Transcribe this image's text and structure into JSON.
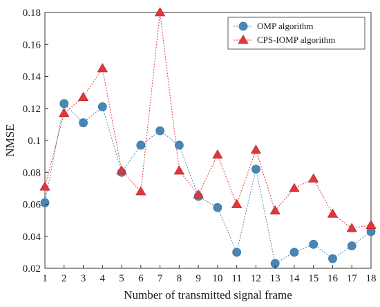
{
  "chart_data": {
    "type": "line",
    "xlabel": "Number of transmitted signal frame",
    "ylabel": "NMSE",
    "xlim": [
      1,
      18
    ],
    "ylim": [
      0.02,
      0.18
    ],
    "x": [
      1,
      2,
      3,
      4,
      5,
      6,
      7,
      8,
      9,
      10,
      11,
      12,
      13,
      14,
      15,
      16,
      17,
      18
    ],
    "x_ticks": [
      "1",
      "2",
      "3",
      "4",
      "5",
      "6",
      "7",
      "8",
      "9",
      "10",
      "11",
      "12",
      "13",
      "14",
      "15",
      "16",
      "17",
      "18"
    ],
    "y_ticks": [
      0.02,
      0.04,
      0.06,
      0.08,
      0.1,
      0.12,
      0.14,
      0.16,
      0.18
    ],
    "y_tick_labels": [
      "0.02",
      "0.04",
      "0.06",
      "0.08",
      "0.1",
      "0.12",
      "0.14",
      "0.16",
      "0.18"
    ],
    "grid": false,
    "legend_position": "top-right",
    "series": [
      {
        "name": "OMP algorithm",
        "marker": "circle",
        "color": "#4a86b4",
        "values": [
          0.061,
          0.123,
          0.111,
          0.121,
          0.08,
          0.097,
          0.106,
          0.097,
          0.065,
          0.058,
          0.03,
          0.082,
          0.023,
          0.03,
          0.035,
          0.026,
          0.034,
          0.043
        ]
      },
      {
        "name": "CPS-IOMP algorithm",
        "marker": "triangle",
        "color": "#e0373a",
        "values": [
          0.071,
          0.117,
          0.127,
          0.145,
          0.081,
          0.068,
          0.18,
          0.081,
          0.066,
          0.091,
          0.06,
          0.094,
          0.056,
          0.07,
          0.076,
          0.054,
          0.045,
          0.047
        ]
      }
    ]
  }
}
